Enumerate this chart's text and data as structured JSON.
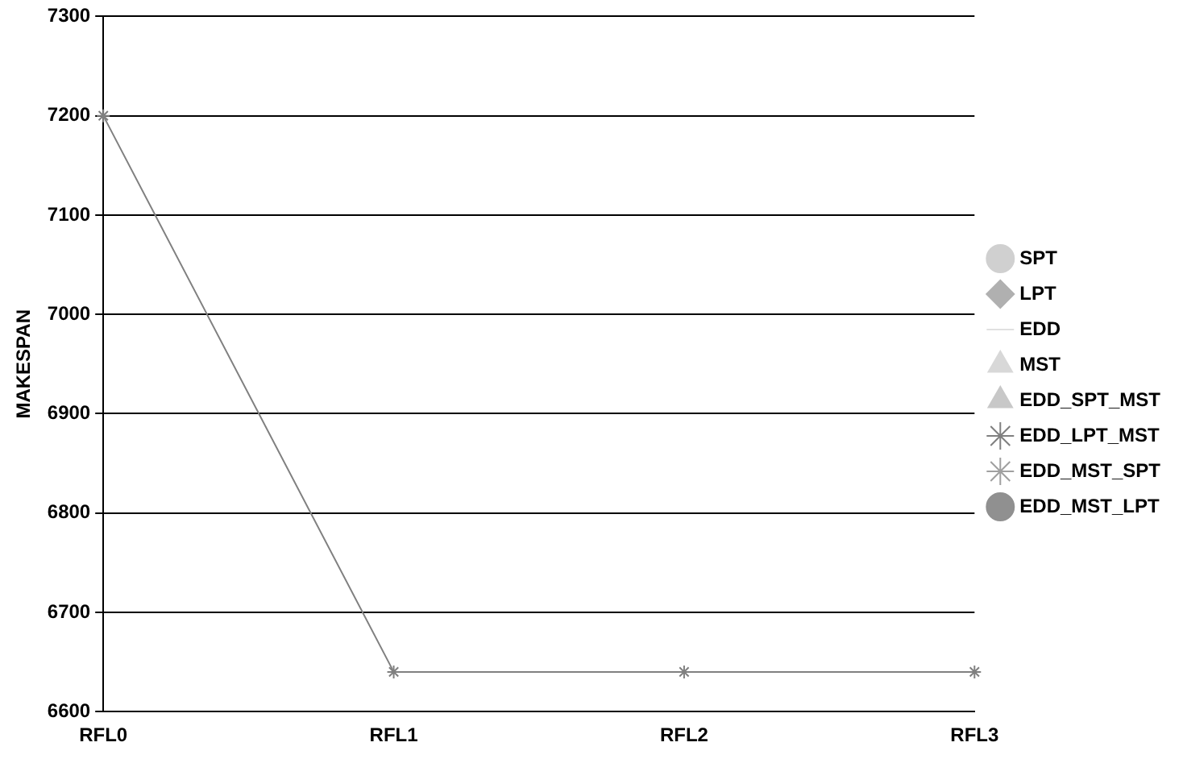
{
  "chart_data": {
    "type": "line",
    "ylabel": "MAKESPAN",
    "categories": [
      "RFL0",
      "RFL1",
      "RFL2",
      "RFL3"
    ],
    "series": [
      {
        "name": "SPT",
        "color": "#d0d0d0",
        "marker": "circle",
        "values": [
          null,
          null,
          null,
          null
        ]
      },
      {
        "name": "LPT",
        "color": "#b0b0b0",
        "marker": "diamond",
        "values": [
          null,
          null,
          null,
          null
        ]
      },
      {
        "name": "EDD",
        "color": "#e0e0e0",
        "marker": "none",
        "values": [
          null,
          null,
          null,
          null
        ]
      },
      {
        "name": "MST",
        "color": "#d8d8d8",
        "marker": "triangle",
        "values": [
          null,
          null,
          null,
          null
        ]
      },
      {
        "name": "EDD_SPT_MST",
        "color": "#c8c8c8",
        "marker": "triangle",
        "values": [
          null,
          null,
          null,
          null
        ]
      },
      {
        "name": "EDD_LPT_MST",
        "color": "#808080",
        "marker": "cross",
        "values": [
          7200,
          6640,
          6640,
          6640
        ]
      },
      {
        "name": "EDD_MST_SPT",
        "color": "#a0a0a0",
        "marker": "cross",
        "values": [
          null,
          null,
          null,
          null
        ]
      },
      {
        "name": "EDD_MST_LPT",
        "color": "#909090",
        "marker": "circle",
        "values": [
          null,
          null,
          null,
          null
        ]
      }
    ],
    "ylim": [
      6600,
      7300
    ],
    "yticks": [
      6600,
      6700,
      6800,
      6900,
      7000,
      7100,
      7200,
      7300
    ],
    "grid": "y",
    "legend": "right"
  }
}
